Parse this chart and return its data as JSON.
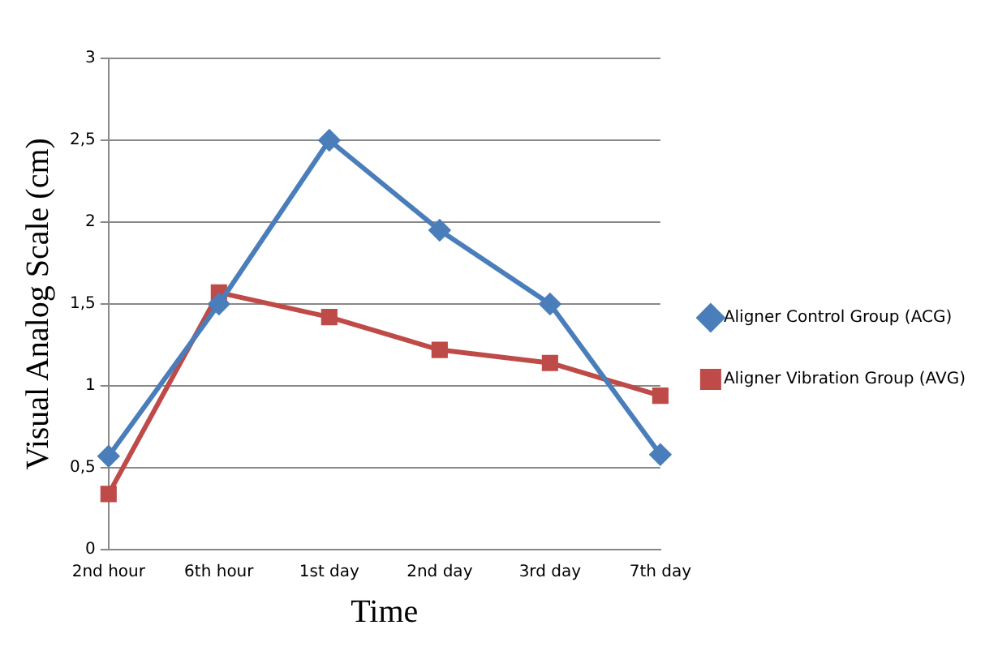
{
  "chart_data": {
    "type": "line",
    "xlabel": "Time",
    "ylabel": "Visual Analog Scale (cm)",
    "categories": [
      "2nd hour",
      "6th hour",
      "1st day",
      "2nd day",
      "3rd day",
      "7th day"
    ],
    "series": [
      {
        "name": "Aligner Control Group (ACG)",
        "color": "#4a7ebb",
        "marker": "diamond",
        "values": [
          0.57,
          1.5,
          2.5,
          1.95,
          1.5,
          0.58
        ]
      },
      {
        "name": "Aligner Vibration Group (AVG)",
        "color": "#be4b48",
        "marker": "square",
        "values": [
          0.34,
          1.57,
          1.42,
          1.22,
          1.14,
          0.94
        ]
      }
    ],
    "ylim": [
      0,
      3
    ],
    "yticks": [
      0,
      {
        "value": 0.5,
        "label": "0,5"
      },
      1,
      {
        "value": 1.5,
        "label": "1,5"
      },
      2,
      {
        "value": 2.5,
        "label": "2,5"
      },
      3
    ],
    "grid": "y",
    "legend": "right"
  }
}
